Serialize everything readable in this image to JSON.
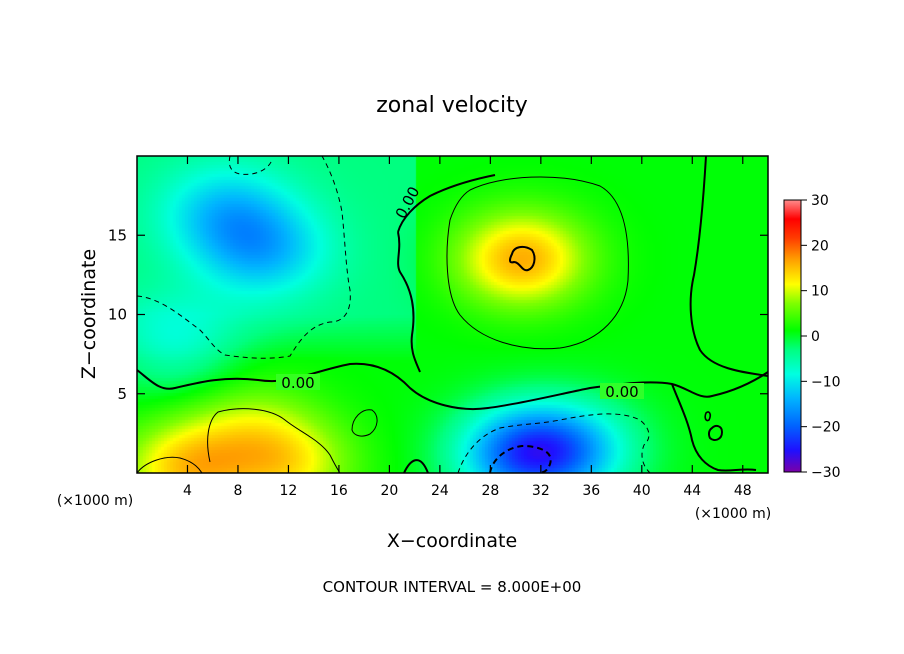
{
  "chart_data": {
    "type": "heatmap",
    "title": "zonal velocity",
    "xlabel": "X−coordinate",
    "ylabel": "Z−coordinate",
    "x_unit": "(×1000 m)",
    "footer": "CONTOUR INTERVAL = 8.000E+00",
    "xlim": [
      0,
      50
    ],
    "ylim": [
      0,
      20
    ],
    "x_ticks": [
      4,
      8,
      12,
      16,
      20,
      24,
      28,
      32,
      36,
      40,
      44,
      48
    ],
    "y_ticks": [
      5,
      10,
      15
    ],
    "colorbar": {
      "min": -30,
      "max": 30,
      "ticks": [
        30,
        20,
        10,
        0,
        -10,
        -20,
        -30
      ],
      "colors": [
        "#7a00a8",
        "#1f10ff",
        "#0063ff",
        "#00b4ff",
        "#00ffe0",
        "#00ff80",
        "#00ff00",
        "#7fff00",
        "#ffff00",
        "#ffa000",
        "#ff3c00",
        "#ff0000",
        "#ff8c8c"
      ]
    },
    "contour_labels": [
      "0.00",
      "0.00",
      "0.00"
    ],
    "features": [
      {
        "x": 30.5,
        "z": 13.5,
        "value": 16
      },
      {
        "x": 10,
        "z": 14,
        "value": -9
      },
      {
        "x": 7,
        "z": 16.5,
        "value": -8
      },
      {
        "x": 30.5,
        "z": 1.2,
        "value": -18
      },
      {
        "x": 34.5,
        "z": 1.5,
        "value": -11
      },
      {
        "x": 4,
        "z": 0.3,
        "value": 14
      },
      {
        "x": 12,
        "z": 0.5,
        "value": 11
      },
      {
        "x": 9,
        "z": 3,
        "value": 7
      },
      {
        "x": 3,
        "z": 8,
        "value": -6
      },
      {
        "x": 45,
        "z": 10,
        "value": 1
      }
    ]
  }
}
